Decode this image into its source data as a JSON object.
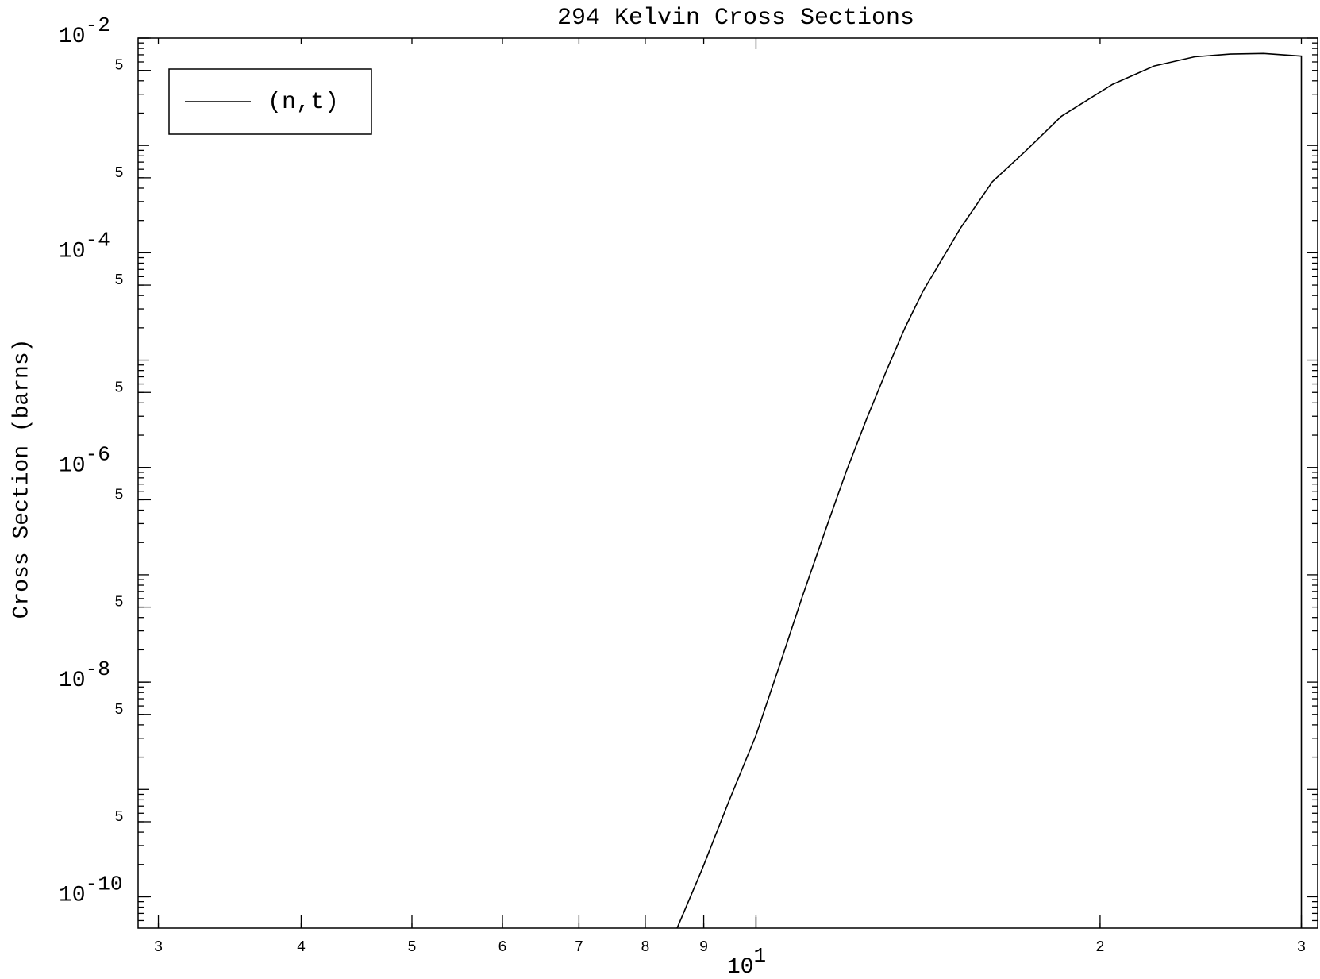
{
  "chart_data": {
    "type": "line",
    "title": "294 Kelvin Cross Sections",
    "y_label": "Cross Section (barns)",
    "log_x": true,
    "log_y": true,
    "xlim": [
      2.88,
      31.0
    ],
    "ylim": [
      5.1e-11,
      0.01
    ],
    "xticks": [
      3,
      4,
      5,
      6,
      7,
      8,
      9,
      {
        "value": 10,
        "label": "10",
        "exponent": "1"
      },
      {
        "value": 20,
        "label": "2"
      },
      {
        "value": 30,
        "label": "3"
      }
    ],
    "yticks": [
      {
        "value": 0.01,
        "label": "10",
        "exponent": "-2"
      },
      {
        "value": 0.005,
        "label": "5"
      },
      {
        "value": 0.0005,
        "label": "5"
      },
      {
        "value": 0.0001,
        "label": "10",
        "exponent": "-4"
      },
      {
        "value": 5e-05,
        "label": "5"
      },
      {
        "value": 5e-06,
        "label": "5"
      },
      {
        "value": 1e-06,
        "label": "10",
        "exponent": "-6"
      },
      {
        "value": 5e-07,
        "label": "5"
      },
      {
        "value": 5e-08,
        "label": "5"
      },
      {
        "value": 1e-08,
        "label": "10",
        "exponent": "-8"
      },
      {
        "value": 5e-09,
        "label": "5"
      },
      {
        "value": 5e-10,
        "label": "5"
      },
      {
        "value": 1e-10,
        "label": "10",
        "exponent": "-10"
      }
    ],
    "legend": "upper left",
    "x": [
      8.53,
      8.97,
      9.47,
      10.0,
      10.49,
      10.98,
      11.5,
      11.99,
      12.49,
      13.0,
      13.5,
      14.0,
      15.1,
      16.1,
      17.2,
      18.5,
      20.5,
      22.3,
      24.2,
      26.0,
      27.8,
      30.0,
      30.0
    ],
    "series": [
      {
        "name": "(n,t)",
        "color": "#000000",
        "values": [
          5.1e-11,
          1.8e-10,
          7.8e-10,
          3.2e-09,
          1.45e-08,
          6.3e-08,
          2.6e-07,
          9.1e-07,
          2.8e-06,
          7.9e-06,
          2e-05,
          4.4e-05,
          0.00017,
          0.00046,
          0.00088,
          0.00187,
          0.0037,
          0.0055,
          0.0067,
          0.0071,
          0.0072,
          0.0068,
          5.1e-11
        ]
      }
    ]
  }
}
